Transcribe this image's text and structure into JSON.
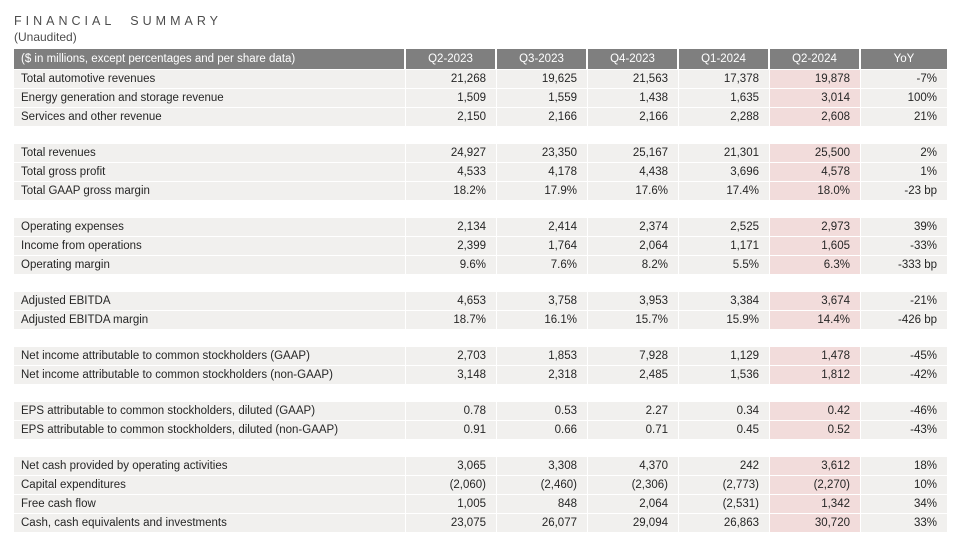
{
  "page": {
    "title": "FINANCIAL SUMMARY",
    "subtitle": "(Unaudited)"
  },
  "colors": {
    "header_bg": "#7f7f7f",
    "header_text": "#ffffff",
    "row_bg": "#f1f0ee",
    "highlight_bg": "#f2dcdb",
    "body_text": "#262626",
    "title_text": "#4d4d4d"
  },
  "table": {
    "unit_label": "($ in millions, except percentages and per share data)",
    "columns": [
      "Q2-2023",
      "Q3-2023",
      "Q4-2023",
      "Q1-2024",
      "Q2-2024",
      "YoY"
    ],
    "highlighted_column": "Q2-2024",
    "rows": [
      {
        "label": "Total automotive revenues",
        "values": [
          "21,268",
          "19,625",
          "21,563",
          "17,378",
          "19,878",
          "-7%"
        ]
      },
      {
        "label": "Energy generation and storage revenue",
        "values": [
          "1,509",
          "1,559",
          "1,438",
          "1,635",
          "3,014",
          "100%"
        ]
      },
      {
        "label": "Services and other revenue",
        "values": [
          "2,150",
          "2,166",
          "2,166",
          "2,288",
          "2,608",
          "21%"
        ]
      },
      {
        "spacer": true
      },
      {
        "label": "Total revenues",
        "values": [
          "24,927",
          "23,350",
          "25,167",
          "21,301",
          "25,500",
          "2%"
        ]
      },
      {
        "label": "Total gross profit",
        "values": [
          "4,533",
          "4,178",
          "4,438",
          "3,696",
          "4,578",
          "1%"
        ]
      },
      {
        "label": "Total GAAP gross margin",
        "values": [
          "18.2%",
          "17.9%",
          "17.6%",
          "17.4%",
          "18.0%",
          "-23 bp"
        ]
      },
      {
        "spacer": true
      },
      {
        "label": "Operating expenses",
        "values": [
          "2,134",
          "2,414",
          "2,374",
          "2,525",
          "2,973",
          "39%"
        ]
      },
      {
        "label": "Income from operations",
        "values": [
          "2,399",
          "1,764",
          "2,064",
          "1,171",
          "1,605",
          "-33%"
        ]
      },
      {
        "label": "Operating margin",
        "values": [
          "9.6%",
          "7.6%",
          "8.2%",
          "5.5%",
          "6.3%",
          "-333 bp"
        ]
      },
      {
        "spacer": true
      },
      {
        "label": "Adjusted EBITDA",
        "values": [
          "4,653",
          "3,758",
          "3,953",
          "3,384",
          "3,674",
          "-21%"
        ]
      },
      {
        "label": "Adjusted EBITDA margin",
        "values": [
          "18.7%",
          "16.1%",
          "15.7%",
          "15.9%",
          "14.4%",
          "-426 bp"
        ]
      },
      {
        "spacer": true
      },
      {
        "label": "Net income attributable to common stockholders (GAAP)",
        "values": [
          "2,703",
          "1,853",
          "7,928",
          "1,129",
          "1,478",
          "-45%"
        ]
      },
      {
        "label": "Net income attributable to common stockholders (non-GAAP)",
        "values": [
          "3,148",
          "2,318",
          "2,485",
          "1,536",
          "1,812",
          "-42%"
        ]
      },
      {
        "spacer": true
      },
      {
        "label": "EPS attributable to common stockholders, diluted (GAAP)",
        "values": [
          "0.78",
          "0.53",
          "2.27",
          "0.34",
          "0.42",
          "-46%"
        ]
      },
      {
        "label": "EPS attributable to common stockholders, diluted (non-GAAP)",
        "values": [
          "0.91",
          "0.66",
          "0.71",
          "0.45",
          "0.52",
          "-43%"
        ]
      },
      {
        "spacer": true
      },
      {
        "label": "Net cash provided by operating activities",
        "values": [
          "3,065",
          "3,308",
          "4,370",
          "242",
          "3,612",
          "18%"
        ]
      },
      {
        "label": "Capital expenditures",
        "values": [
          "(2,060)",
          "(2,460)",
          "(2,306)",
          "(2,773)",
          "(2,270)",
          "10%"
        ]
      },
      {
        "label": "Free cash flow",
        "values": [
          "1,005",
          "848",
          "2,064",
          "(2,531)",
          "1,342",
          "34%"
        ]
      },
      {
        "label": "Cash, cash equivalents and investments",
        "values": [
          "23,075",
          "26,077",
          "29,094",
          "26,863",
          "30,720",
          "33%"
        ]
      }
    ]
  }
}
